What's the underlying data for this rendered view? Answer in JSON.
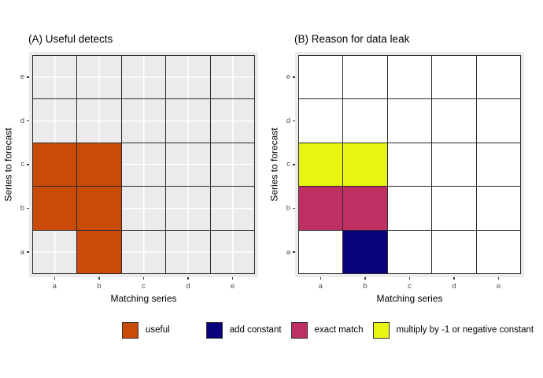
{
  "chart_data": [
    {
      "type": "heatmap",
      "title": "(A) Useful detects",
      "xlabel": "Matching series",
      "ylabel": "Series to forecast",
      "x_categories": [
        "a",
        "b",
        "c",
        "d",
        "e"
      ],
      "y_categories": [
        "a",
        "b",
        "c",
        "d",
        "e"
      ],
      "empty_fill": "#EBEBEB",
      "empty_has_gridlines": true,
      "cells": [
        {
          "x": "a",
          "y": "c",
          "category": "useful"
        },
        {
          "x": "b",
          "y": "c",
          "category": "useful"
        },
        {
          "x": "a",
          "y": "b",
          "category": "useful"
        },
        {
          "x": "b",
          "y": "b",
          "category": "useful"
        },
        {
          "x": "b",
          "y": "a",
          "category": "useful"
        }
      ]
    },
    {
      "type": "heatmap",
      "title": "(B) Reason for data leak",
      "xlabel": "Matching series",
      "ylabel": "Series to forecast",
      "x_categories": [
        "a",
        "b",
        "c",
        "d",
        "e"
      ],
      "y_categories": [
        "a",
        "b",
        "c",
        "d",
        "e"
      ],
      "empty_fill": "#FFFFFF",
      "empty_has_gridlines": false,
      "cells": [
        {
          "x": "a",
          "y": "c",
          "category": "multiply by -1 or negative constant"
        },
        {
          "x": "b",
          "y": "c",
          "category": "multiply by -1 or negative constant"
        },
        {
          "x": "a",
          "y": "b",
          "category": "exact match"
        },
        {
          "x": "b",
          "y": "b",
          "category": "exact match"
        },
        {
          "x": "b",
          "y": "a",
          "category": "add constant"
        }
      ]
    }
  ],
  "legend": {
    "items": [
      {
        "label": "useful",
        "color": "#CA4A0A"
      },
      {
        "label": "add constant",
        "color": "#08037A"
      },
      {
        "label": "exact match",
        "color": "#BE3064"
      },
      {
        "label": "multiply by -1 or negative constant",
        "color": "#E9F412"
      }
    ]
  },
  "style": {
    "panel_background": "#EBEBEB",
    "cell_border": "#2b2b2b",
    "gridline": "#FFFFFF",
    "tick_label_color": "#4D4D4D"
  }
}
